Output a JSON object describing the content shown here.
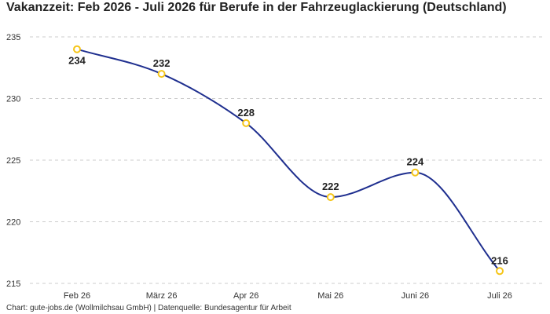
{
  "chart_data": {
    "type": "line",
    "title": "Vakanzzeit: Feb 2026 - Juli 2026 für Berufe in der Fahrzeuglackierung (Deutschland)",
    "xlabel": "",
    "ylabel": "",
    "categories": [
      "Feb 26",
      "März 26",
      "Apr 26",
      "Mai 26",
      "Juni 26",
      "Juli 26"
    ],
    "series": [
      {
        "values": [
          234,
          232,
          228,
          222,
          224,
          216
        ],
        "data_labels": [
          "234",
          "232",
          "228",
          "222",
          "224",
          "216"
        ]
      }
    ],
    "ylim": [
      215,
      235
    ],
    "yticks": [
      215,
      220,
      225,
      230,
      235
    ],
    "ytick_labels": [
      "215",
      "220",
      "225",
      "230",
      "235"
    ],
    "grid": true,
    "grid_style": "dashed",
    "line_smooth": true,
    "colors": {
      "line": "#1f2f8f",
      "marker_stroke": "#f5c518",
      "marker_fill": "#ffffff",
      "grid": "#cccccc"
    }
  },
  "footer": "Chart: gute-jobs.de (Wollmilchsau GmbH) | Datenquelle: Bundesagentur für Arbeit"
}
